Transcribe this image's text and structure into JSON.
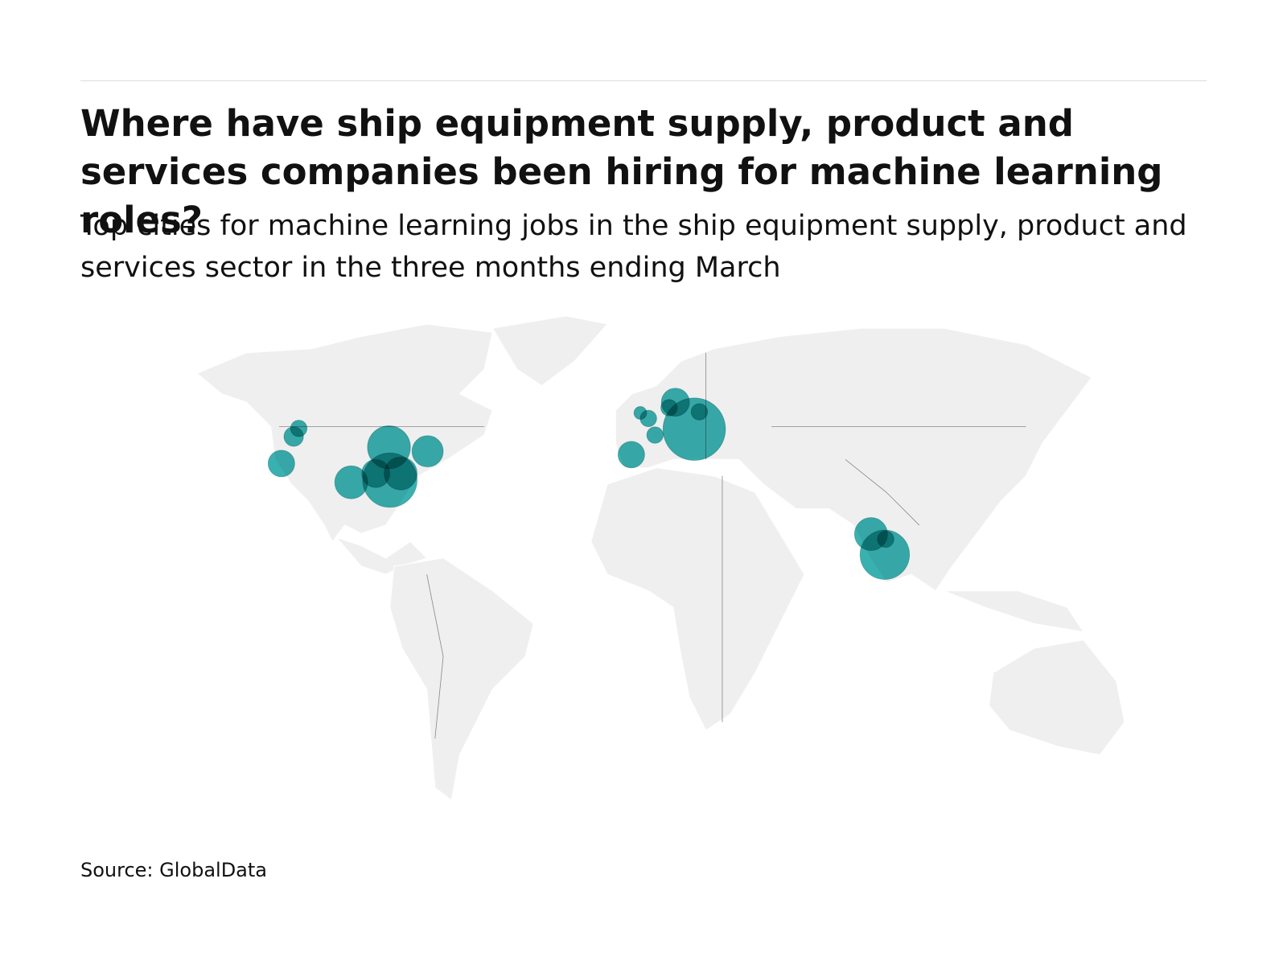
{
  "chart_data": {
    "type": "bubble-map",
    "title": "Where have ship equipment supply, product and services companies been hiring for machine learning roles?",
    "subtitle": "Top cities for machine learning jobs in the ship equipment supply, product and services sector in the three months ending March",
    "source": "Source: GlobalData",
    "color": "#17a3a3",
    "x": [
      -117.8,
      -119.5,
      -123.6,
      -87.7,
      -74.8,
      -100.3,
      -92.1,
      -87.4,
      -83.8,
      -6.8,
      -3.8,
      -1.1,
      1.1,
      7.9,
      14.2,
      15.9,
      5.8,
      73.2,
      77.8,
      78.1
    ],
    "y": [
      47.2,
      45.0,
      37.7,
      42.1,
      41.0,
      32.6,
      35.0,
      33.2,
      35.0,
      40.1,
      51.4,
      49.9,
      45.4,
      54.3,
      47.0,
      51.7,
      52.8,
      18.6,
      13.0,
      17.2
    ],
    "values": [
      10,
      14,
      26,
      68,
      36,
      40,
      29,
      109,
      40,
      26,
      6,
      10,
      10,
      29,
      144,
      10,
      10,
      40,
      90,
      10
    ]
  }
}
